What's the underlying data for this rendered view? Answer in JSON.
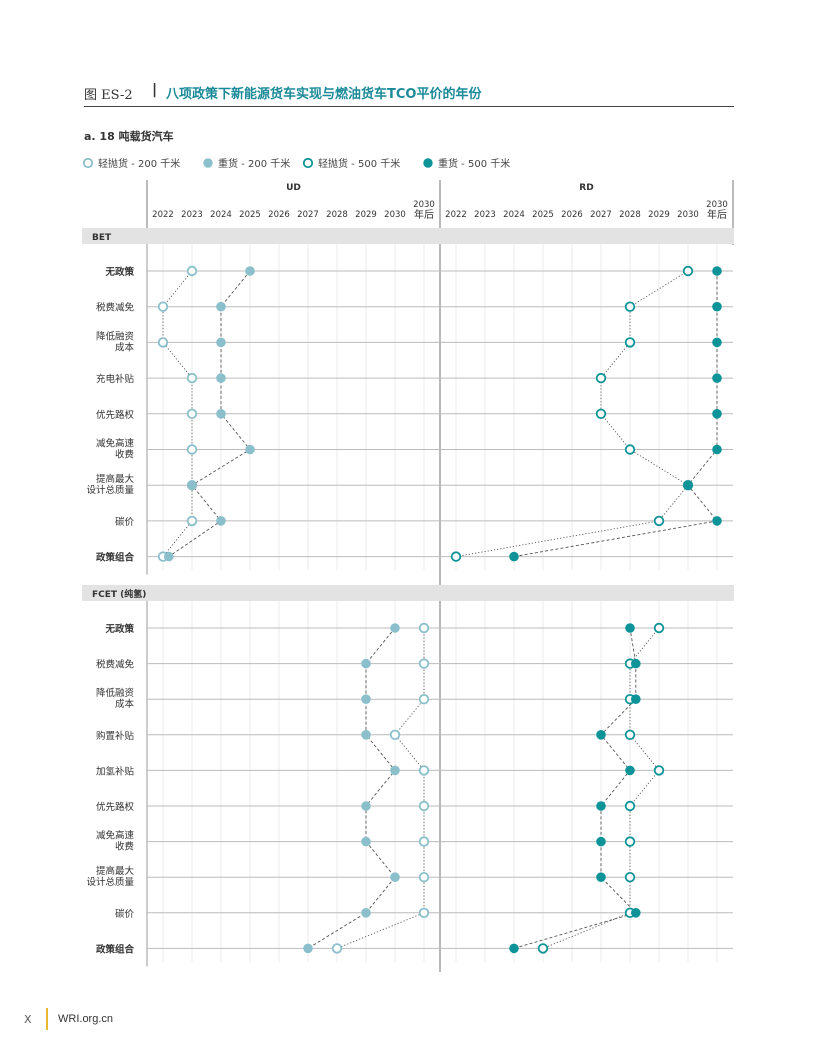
{
  "figure": {
    "label": "图 ES-2",
    "separator": "|",
    "title": "八项政策下新能源货车实现与燃油货车TCO平价的年份",
    "subtitle": "a. 18 吨载货汽车"
  },
  "footer": {
    "page": "X",
    "site": "WRI.org.cn"
  },
  "colors": {
    "light": "#8bbfcc",
    "dark": "#0e9498",
    "accent": "#1a8a99",
    "grid": "#bbbbbb",
    "band": "#e3e3e3"
  },
  "chart_data": {
    "type": "scatter",
    "legend": [
      {
        "key": "ld200",
        "label": "轻抛货 - 200 千米",
        "style": "open",
        "color": "light"
      },
      {
        "key": "hv200",
        "label": "重货 - 200 千米",
        "style": "filled",
        "color": "light"
      },
      {
        "key": "ld500",
        "label": "轻抛货 - 500 千米",
        "style": "open",
        "color": "dark"
      },
      {
        "key": "hv500",
        "label": "重货 - 500 千米",
        "style": "filled",
        "color": "dark"
      }
    ],
    "panels": [
      {
        "name": "UD",
        "years": [
          "2022",
          "2023",
          "2024",
          "2025",
          "2026",
          "2027",
          "2028",
          "2029",
          "2030",
          "2030 年后"
        ]
      },
      {
        "name": "RD",
        "years": [
          "2022",
          "2023",
          "2024",
          "2025",
          "2026",
          "2027",
          "2028",
          "2029",
          "2030",
          "2030 年后"
        ]
      }
    ],
    "sections": [
      {
        "name": "BET",
        "rows": [
          {
            "label": "无政策",
            "bold": true,
            "UD": {
              "ld200": 2023,
              "hv200": 2025
            },
            "RD": {
              "ld500": 2030,
              "hv500": "2030 年后"
            }
          },
          {
            "label": "税费减免",
            "bold": false,
            "UD": {
              "ld200": 2022,
              "hv200": 2024
            },
            "RD": {
              "ld500": 2028,
              "hv500": "2030 年后"
            }
          },
          {
            "label": "降低融资成本",
            "bold": false,
            "UD": {
              "ld200": 2022,
              "hv200": 2024
            },
            "RD": {
              "ld500": 2028,
              "hv500": "2030 年后"
            }
          },
          {
            "label": "充电补贴",
            "bold": false,
            "UD": {
              "ld200": 2023,
              "hv200": 2024
            },
            "RD": {
              "ld500": 2027,
              "hv500": "2030 年后"
            }
          },
          {
            "label": "优先路权",
            "bold": false,
            "UD": {
              "ld200": 2023,
              "hv200": 2024
            },
            "RD": {
              "ld500": 2027,
              "hv500": "2030 年后"
            }
          },
          {
            "label": "减免高速收费",
            "bold": false,
            "UD": {
              "ld200": 2023,
              "hv200": 2025
            },
            "RD": {
              "ld500": 2028,
              "hv500": "2030 年后"
            }
          },
          {
            "label": "提高最大设计总质量",
            "bold": false,
            "UD": {
              "ld200": 2023,
              "hv200": 2023
            },
            "RD": {
              "ld500": 2030,
              "hv500": 2030
            }
          },
          {
            "label": "碳价",
            "bold": false,
            "UD": {
              "ld200": 2023,
              "hv200": 2024
            },
            "RD": {
              "ld500": 2029,
              "hv500": "2030 年后"
            }
          },
          {
            "label": "政策组合",
            "bold": true,
            "UD": {
              "ld200": 2022,
              "hv200": 2022.2
            },
            "RD": {
              "ld500": 2022,
              "hv500": 2024
            }
          }
        ]
      },
      {
        "name": "FCET (纯氢)",
        "rows": [
          {
            "label": "无政策",
            "bold": true,
            "UD": {
              "ld200": "2030 年后",
              "hv200": 2030
            },
            "RD": {
              "ld500": 2029,
              "hv500": 2028
            }
          },
          {
            "label": "税费减免",
            "bold": false,
            "UD": {
              "ld200": "2030 年后",
              "hv200": 2029
            },
            "RD": {
              "ld500": 2028,
              "hv500": 2028.2
            }
          },
          {
            "label": "降低融资成本",
            "bold": false,
            "UD": {
              "ld200": "2030 年后",
              "hv200": 2029
            },
            "RD": {
              "ld500": 2028,
              "hv500": 2028.2
            }
          },
          {
            "label": "购置补贴",
            "bold": false,
            "UD": {
              "ld200": 2030,
              "hv200": 2029
            },
            "RD": {
              "ld500": 2028,
              "hv500": 2027
            }
          },
          {
            "label": "加氢补贴",
            "bold": false,
            "UD": {
              "ld200": "2030 年后",
              "hv200": 2030
            },
            "RD": {
              "ld500": 2029,
              "hv500": 2028
            }
          },
          {
            "label": "优先路权",
            "bold": false,
            "UD": {
              "ld200": "2030 年后",
              "hv200": 2029
            },
            "RD": {
              "ld500": 2028,
              "hv500": 2027
            }
          },
          {
            "label": "减免高速收费",
            "bold": false,
            "UD": {
              "ld200": "2030 年后",
              "hv200": 2029
            },
            "RD": {
              "ld500": 2028,
              "hv500": 2027
            }
          },
          {
            "label": "提高最大设计总质量",
            "bold": false,
            "UD": {
              "ld200": "2030 年后",
              "hv200": 2030
            },
            "RD": {
              "ld500": 2028,
              "hv500": 2027
            }
          },
          {
            "label": "碳价",
            "bold": false,
            "UD": {
              "ld200": "2030 年后",
              "hv200": 2029
            },
            "RD": {
              "ld500": 2028,
              "hv500": 2028.2
            }
          },
          {
            "label": "政策组合",
            "bold": true,
            "UD": {
              "ld200": 2028,
              "hv200": 2027
            },
            "RD": {
              "ld500": 2025,
              "hv500": 2024
            }
          }
        ]
      }
    ]
  }
}
